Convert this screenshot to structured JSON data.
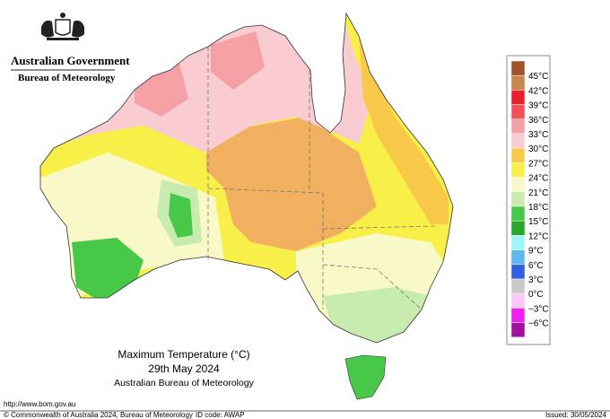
{
  "header": {
    "government": "Australian Government",
    "agency": "Bureau of Meteorology"
  },
  "map": {
    "title": "Maximum Temperature (°C)",
    "date": "29th May 2024",
    "source": "Australian Bureau of Meteorology"
  },
  "legend": {
    "swatches": [
      "#a0522d",
      "#c8864a",
      "#e82028",
      "#f25058",
      "#f4a0a4",
      "#f8ccd0",
      "#f8c848",
      "#f8f048",
      "#f8f8c8",
      "#c8ecb0",
      "#48c848",
      "#28a828",
      "#a0f4f8",
      "#60b8f0",
      "#3060e0",
      "#c8c8c8",
      "#f8c8f8",
      "#f020f0",
      "#a010a0"
    ],
    "labels": [
      "45°C",
      "42°C",
      "39°C",
      "36°C",
      "33°C",
      "30°C",
      "27°C",
      "24°C",
      "21°C",
      "18°C",
      "15°C",
      "12°C",
      "9°C",
      "6°C",
      "3°C",
      "0°C",
      "−3°C",
      "−6°C"
    ]
  },
  "footer": {
    "url": "http://www.bom.gov.au",
    "copyright": "© Commonwealth of Australia 2024, Bureau of Meteorology",
    "id_code": "ID code: AWAP",
    "issued": "Issued: 30/05/2024"
  }
}
